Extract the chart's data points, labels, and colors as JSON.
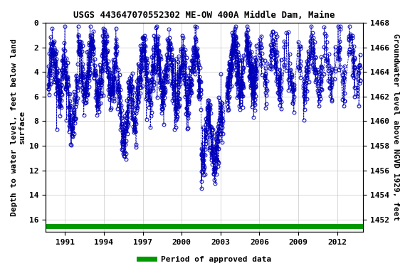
{
  "title": "USGS 443647070552302 ME-OW 400A Middle Dam, Maine",
  "ylabel_left": "Depth to water level, feet below land\nsurface",
  "ylabel_right": "Groundwater level above NGVD 1929, feet",
  "ylim_left": [
    17,
    0
  ],
  "ylim_right": [
    1451,
    1468
  ],
  "xlim": [
    1989.5,
    2014.0
  ],
  "xticks": [
    1991,
    1994,
    1997,
    2000,
    2003,
    2006,
    2009,
    2012
  ],
  "yticks_left": [
    0,
    2,
    4,
    6,
    8,
    10,
    12,
    14,
    16
  ],
  "yticks_right": [
    1452,
    1454,
    1456,
    1458,
    1460,
    1462,
    1464,
    1466,
    1468
  ],
  "marker_color": "#0000BB",
  "line_color": "#0000BB",
  "bar_color": "#009900",
  "background_color": "#ffffff",
  "grid_color": "#bbbbbb",
  "title_fontsize": 9,
  "axis_fontsize": 8,
  "tick_fontsize": 8,
  "legend_label": "Period of approved data"
}
